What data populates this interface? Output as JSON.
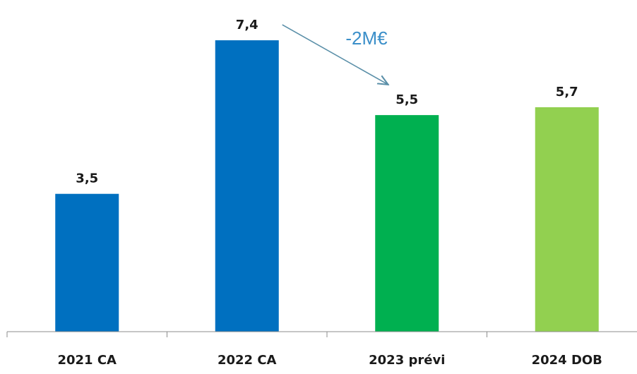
{
  "chart_data": {
    "type": "bar",
    "categories": [
      "2021 CA",
      "2022 CA",
      "2023 prévi",
      "2024 DOB"
    ],
    "values": [
      3.5,
      7.4,
      5.5,
      5.7
    ],
    "value_labels": [
      "3,5",
      "7,4",
      "5,5",
      "5,7"
    ],
    "colors": [
      "#0070c0",
      "#0070c0",
      "#00b050",
      "#92d050"
    ],
    "ylim": [
      0,
      8
    ],
    "grid": false,
    "legend": "none",
    "annotation": {
      "text": "-2M€",
      "color": "#3b8fc9",
      "arrow_color": "#5a8fa8",
      "from_category": "2022 CA",
      "to_category": "2023 prévi"
    }
  }
}
